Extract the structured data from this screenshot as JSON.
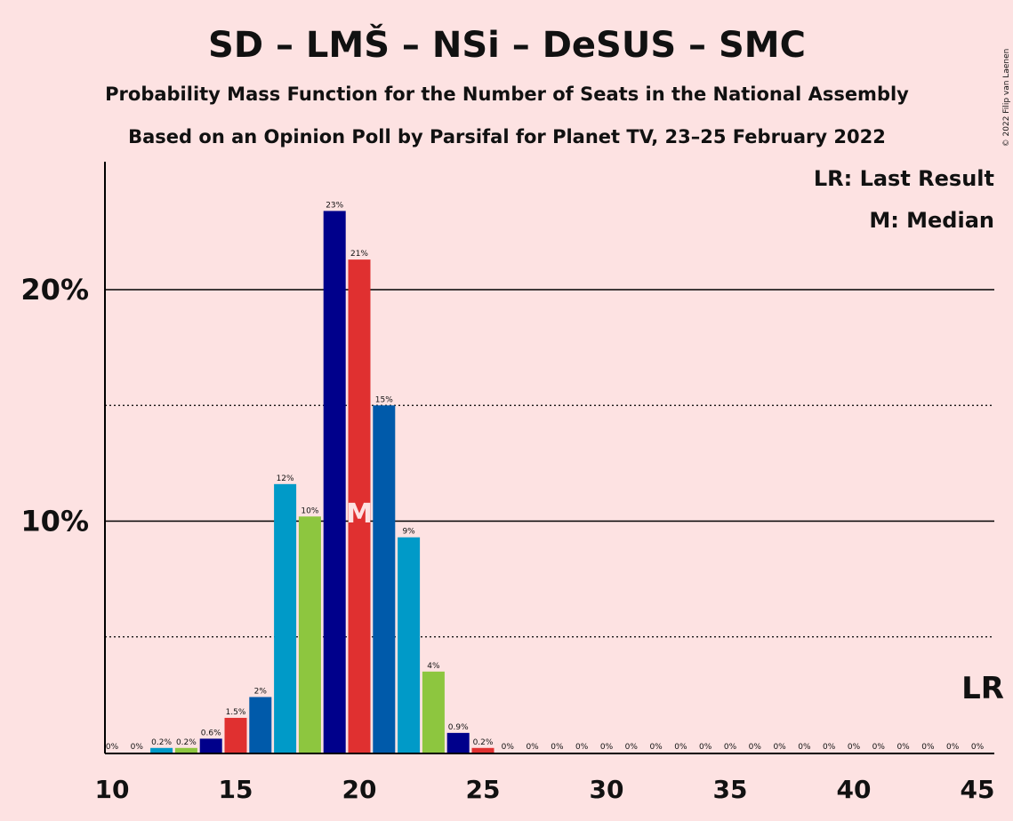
{
  "chart_data": {
    "type": "bar",
    "title": "SD – LMŠ – NSi – DeSUS – SMC",
    "subtitle": "Probability Mass Function for the Number of Seats in the National Assembly",
    "subtitle2": "Based on an Opinion Poll by Parsifal for Planet TV, 23–25 February 2022",
    "copyright": "© 2022 Filip van Laenen",
    "legend": {
      "last_result": "LR: Last Result",
      "median": "M: Median"
    },
    "xlim": [
      10,
      45
    ],
    "ylim": [
      0,
      25
    ],
    "yticks": [
      {
        "value": 10,
        "label": "10%"
      },
      {
        "value": 20,
        "label": "20%"
      }
    ],
    "ygrid_dotted": [
      5,
      15
    ],
    "xticks": [
      10,
      15,
      20,
      25,
      30,
      35,
      40,
      45
    ],
    "x": [
      10,
      11,
      12,
      13,
      14,
      15,
      16,
      17,
      18,
      19,
      20,
      21,
      22,
      23,
      24,
      25,
      26,
      27,
      28,
      29,
      30,
      31,
      32,
      33,
      34,
      35,
      36,
      37,
      38,
      39,
      40,
      41,
      42,
      43,
      44,
      45
    ],
    "values": [
      0,
      0,
      0.2,
      0.2,
      0.6,
      1.5,
      2.4,
      11.6,
      10.2,
      23.4,
      21.3,
      15.0,
      9.3,
      3.5,
      0.85,
      0.2,
      0,
      0,
      0,
      0,
      0,
      0,
      0,
      0,
      0,
      0,
      0,
      0,
      0,
      0,
      0,
      0,
      0,
      0,
      0,
      0
    ],
    "labels": [
      "0%",
      "0%",
      "0.2%",
      "0.2%",
      "0.6%",
      "1.5%",
      "2%",
      "12%",
      "10%",
      "23%",
      "21%",
      "15%",
      "9%",
      "4%",
      "0.9%",
      "0.2%",
      "0%",
      "0%",
      "0%",
      "0%",
      "0%",
      "0%",
      "0%",
      "0%",
      "0%",
      "0%",
      "0%",
      "0%",
      "0%",
      "0%",
      "0%",
      "0%",
      "0%",
      "0%",
      "0%",
      "0%"
    ],
    "colors": [
      "#00008b",
      "#e03030",
      "#009ac8",
      "#8dc63f",
      "#00008b",
      "#e03030",
      "#005aaa",
      "#009ac8",
      "#8dc63f",
      "#00008b",
      "#e03030",
      "#005aaa",
      "#009ac8",
      "#8dc63f",
      "#00008b",
      "#e03030",
      "#005aaa",
      "#009ac8",
      "#8dc63f",
      "#00008b",
      "#e03030",
      "#005aaa",
      "#009ac8",
      "#8dc63f",
      "#00008b",
      "#e03030",
      "#005aaa",
      "#009ac8",
      "#8dc63f",
      "#00008b",
      "#e03030",
      "#005aaa",
      "#009ac8",
      "#8dc63f",
      "#00008b",
      "#e03030"
    ],
    "median": 20,
    "median_label": "M",
    "last_result": 45,
    "last_result_label": "LR"
  }
}
